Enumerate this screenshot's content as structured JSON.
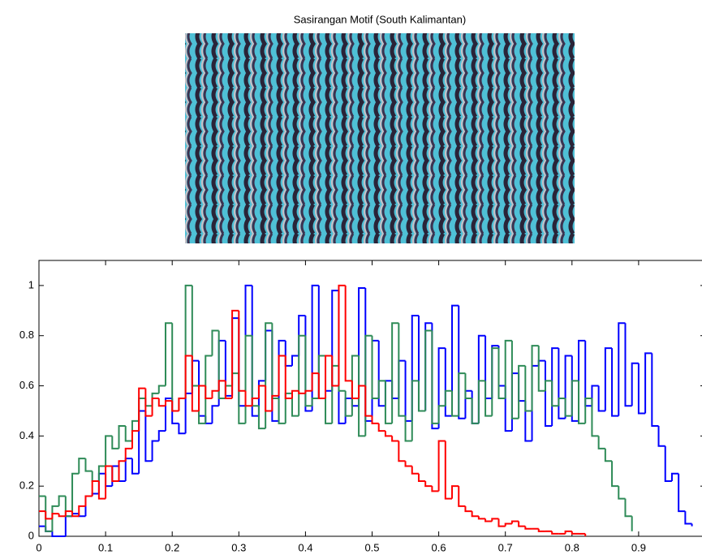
{
  "chart_data": {
    "type": "stairs",
    "title": "Sasirangan Motif (South Kalimantan)",
    "xlim": [
      0,
      1
    ],
    "ylim": [
      0,
      1.1
    ],
    "xticks": [
      0,
      0.1,
      0.2,
      0.3,
      0.4,
      0.5,
      0.6,
      0.7,
      0.8,
      0.9
    ],
    "yticks": [
      0,
      0.2,
      0.4,
      0.6,
      0.8,
      1
    ],
    "x": [
      0,
      0.01,
      0.02,
      0.03,
      0.04,
      0.05,
      0.06,
      0.07,
      0.08,
      0.09,
      0.1,
      0.11,
      0.12,
      0.13,
      0.14,
      0.15,
      0.16,
      0.17,
      0.18,
      0.19,
      0.2,
      0.21,
      0.22,
      0.23,
      0.24,
      0.25,
      0.26,
      0.27,
      0.28,
      0.29,
      0.3,
      0.31,
      0.32,
      0.33,
      0.34,
      0.35,
      0.36,
      0.37,
      0.38,
      0.39,
      0.4,
      0.41,
      0.42,
      0.43,
      0.44,
      0.45,
      0.46,
      0.47,
      0.48,
      0.49,
      0.5,
      0.51,
      0.52,
      0.53,
      0.54,
      0.55,
      0.56,
      0.57,
      0.58,
      0.59,
      0.6,
      0.61,
      0.62,
      0.63,
      0.64,
      0.65,
      0.66,
      0.67,
      0.68,
      0.69,
      0.7,
      0.71,
      0.72,
      0.73,
      0.74,
      0.75,
      0.76,
      0.77,
      0.78,
      0.79,
      0.8,
      0.81,
      0.82,
      0.83,
      0.84,
      0.85,
      0.86,
      0.87,
      0.88,
      0.89,
      0.9,
      0.91,
      0.92,
      0.93,
      0.94,
      0.95,
      0.96,
      0.97,
      0.98
    ],
    "series": [
      {
        "color": "#0000ff",
        "values": [
          0.04,
          0.02,
          0,
          0,
          0.08,
          0.09,
          0.08,
          0.16,
          0.17,
          0.25,
          0.2,
          0.28,
          0.22,
          0.31,
          0.25,
          0.5,
          0.3,
          0.38,
          0.42,
          0.55,
          0.45,
          0.41,
          0.57,
          0.7,
          0.48,
          0.45,
          0.52,
          0.78,
          0.56,
          0.87,
          0.52,
          1,
          0.48,
          0.62,
          0.82,
          0.46,
          0.78,
          0.68,
          0.72,
          0.88,
          0.5,
          1,
          0.55,
          0.58,
          0.98,
          0.45,
          0.55,
          0.52,
          0.99,
          0.46,
          0.78,
          0.52,
          0.62,
          0.55,
          0.7,
          0.46,
          0.88,
          0.5,
          0.85,
          0.43,
          0.75,
          0.48,
          0.92,
          0.47,
          0.58,
          0.45,
          0.8,
          0.55,
          0.76,
          0.6,
          0.42,
          0.65,
          0.54,
          0.38,
          0.68,
          0.7,
          0.44,
          0.75,
          0.47,
          0.72,
          0.46,
          0.78,
          0.52,
          0.6,
          0.5,
          0.75,
          0.48,
          0.85,
          0.52,
          0.69,
          0.49,
          0.73,
          0.44,
          0.36,
          0.22,
          0.25,
          0.1,
          0.05,
          0.04
        ]
      },
      {
        "color": "#2e8b57",
        "values": [
          0.16,
          0.02,
          0.12,
          0.16,
          0.08,
          0.25,
          0.31,
          0.26,
          0.22,
          0.28,
          0.4,
          0.35,
          0.44,
          0.38,
          0.46,
          0.55,
          0.52,
          0.57,
          0.6,
          0.85,
          0.5,
          0.55,
          1,
          0.6,
          0.45,
          0.72,
          0.82,
          0.55,
          0.6,
          0.65,
          0.45,
          0.8,
          0.52,
          0.43,
          0.85,
          0.55,
          0.45,
          0.57,
          0.48,
          0.8,
          0.52,
          0.55,
          0.72,
          0.45,
          0.68,
          0.58,
          0.48,
          0.72,
          0.4,
          0.8,
          0.55,
          0.62,
          0.45,
          0.85,
          0.48,
          0.38,
          0.62,
          0.5,
          0.82,
          0.45,
          0.52,
          0.58,
          0.48,
          0.65,
          0.55,
          0.45,
          0.62,
          0.48,
          0.75,
          0.55,
          0.78,
          0.47,
          0.68,
          0.5,
          0.76,
          0.58,
          0.62,
          0.52,
          0.55,
          0.48,
          0.62,
          0.45,
          0.55,
          0.4,
          0.35,
          0.3,
          0.2,
          0.15,
          0.08,
          0.02,
          null,
          null,
          null,
          null,
          null,
          null,
          null,
          null,
          null
        ]
      },
      {
        "color": "#ff0000",
        "values": [
          0.1,
          0.07,
          0.09,
          0.08,
          0.1,
          0.08,
          0.12,
          0.16,
          0.22,
          0.15,
          0.28,
          0.22,
          0.3,
          0.35,
          0.42,
          0.59,
          0.48,
          0.55,
          0.52,
          0.54,
          0.5,
          0.55,
          0.72,
          0.5,
          0.6,
          0.55,
          0.58,
          0.62,
          0.55,
          0.9,
          0.58,
          0.52,
          0.55,
          0.6,
          0.5,
          0.56,
          0.72,
          0.55,
          0.58,
          0.57,
          0.58,
          0.65,
          0.55,
          0.72,
          0.6,
          1,
          0.62,
          0.55,
          0.6,
          0.48,
          0.45,
          0.42,
          0.4,
          0.38,
          0.3,
          0.28,
          0.25,
          0.22,
          0.2,
          0.18,
          0.38,
          0.15,
          0.2,
          0.12,
          0.1,
          0.08,
          0.07,
          0.06,
          0.07,
          0.04,
          0.05,
          0.06,
          0.04,
          0.03,
          0.03,
          0.02,
          0.02,
          0.01,
          0.01,
          0.02,
          0.01,
          0.01,
          0,
          null,
          null,
          null,
          null,
          null,
          null,
          null,
          null,
          null,
          null,
          null,
          null,
          null,
          null,
          null,
          null
        ]
      }
    ]
  }
}
